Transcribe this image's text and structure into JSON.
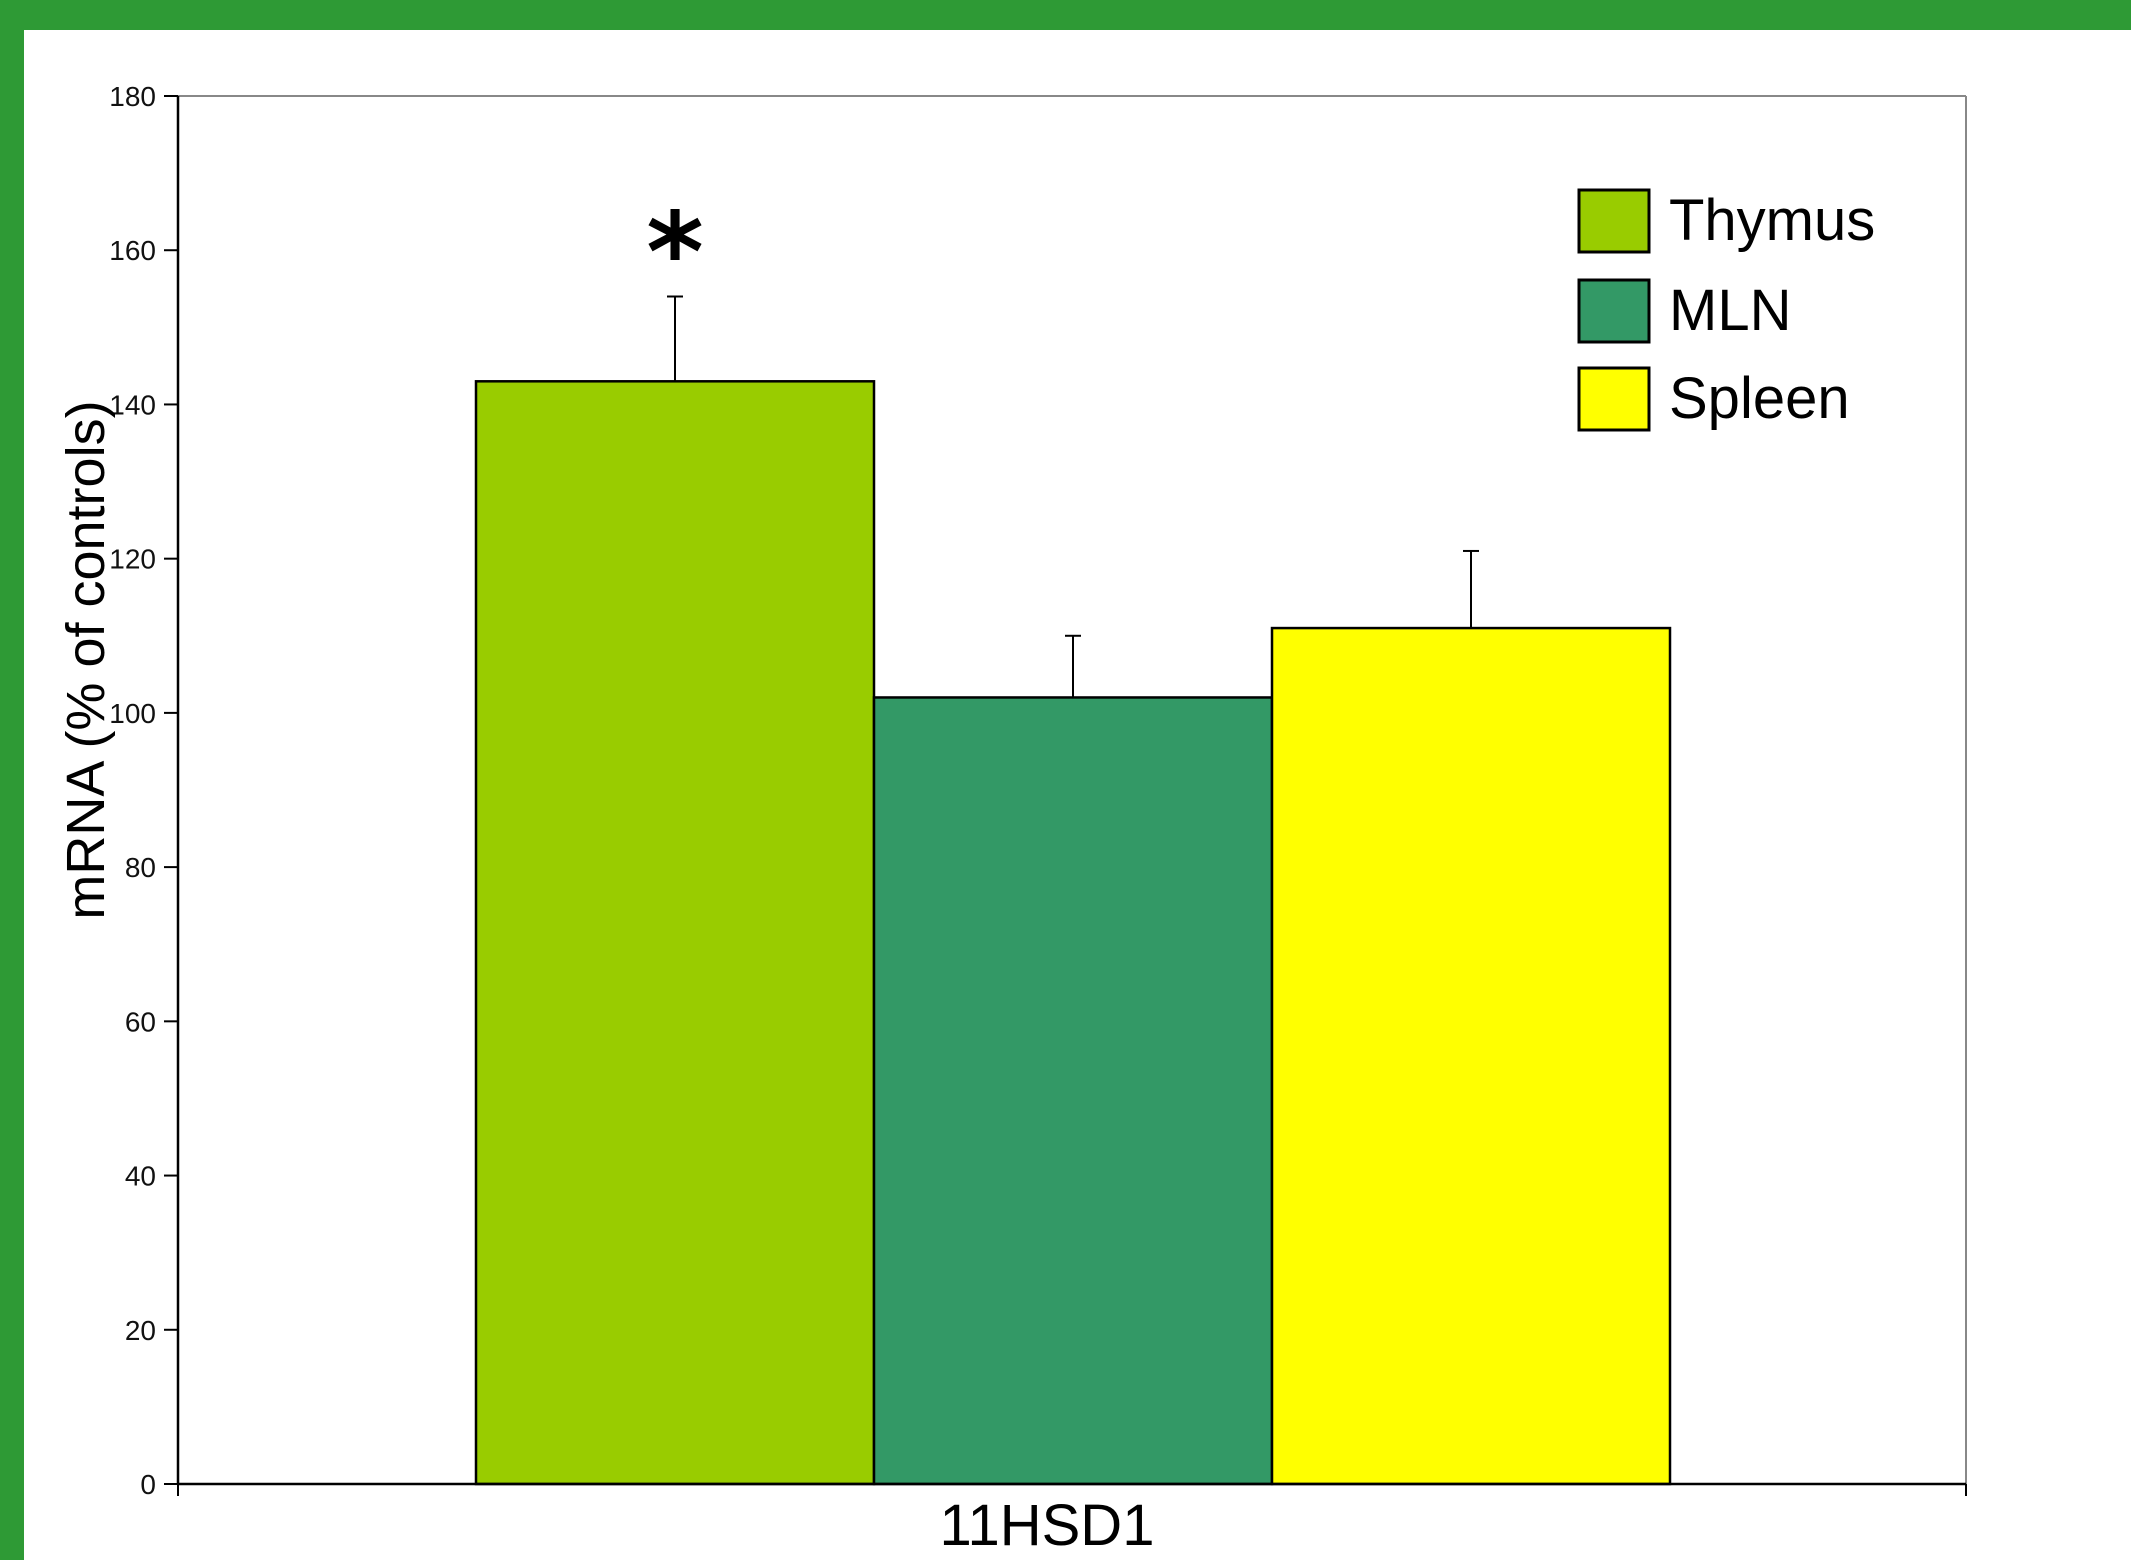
{
  "chart_data": {
    "type": "bar",
    "categories": [
      "11HSD1"
    ],
    "series": [
      {
        "name": "Thymus",
        "values": [
          143
        ],
        "error": [
          11
        ],
        "color": "#99cc00",
        "annotation": "*"
      },
      {
        "name": "MLN",
        "values": [
          102
        ],
        "error": [
          8
        ],
        "color": "#339966"
      },
      {
        "name": "Spleen",
        "values": [
          111
        ],
        "error": [
          10
        ],
        "color": "#ffff00"
      }
    ],
    "title": "",
    "xlabel": "",
    "ylabel": "mRNA (% of controls)",
    "ylim": [
      0,
      180
    ],
    "yticks": [
      "0",
      "20",
      "40",
      "60",
      "80",
      "100",
      "120",
      "140",
      "160",
      "180"
    ],
    "grid": false,
    "legend_position": "top-right"
  },
  "colors": {
    "frame_border": "#2e9a35",
    "background": "#ffffff"
  }
}
